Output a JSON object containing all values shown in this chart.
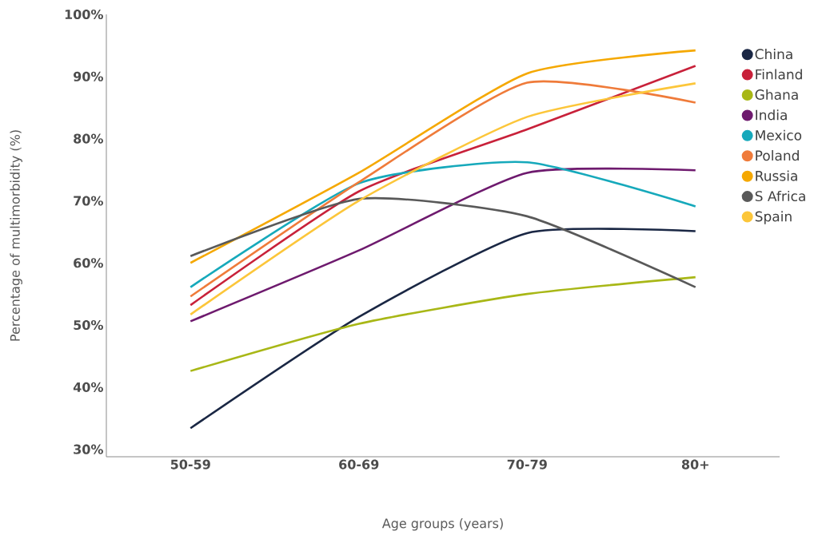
{
  "chart_data": {
    "type": "line",
    "xlabel": "Age groups (years)",
    "ylabel": "Percentage of multimorbidity (%)",
    "categories": [
      "50-59",
      "60-69",
      "70-79",
      "80+"
    ],
    "ylim": [
      28.8,
      100
    ],
    "yticks": [
      {
        "value": 30,
        "label": "30%"
      },
      {
        "value": 40,
        "label": "40%"
      },
      {
        "value": 50,
        "label": "50%"
      },
      {
        "value": 60,
        "label": "60%"
      },
      {
        "value": 70,
        "label": "70%"
      },
      {
        "value": 80,
        "label": "80%"
      },
      {
        "value": 90,
        "label": "90%"
      },
      {
        "value": 100,
        "label": "100%"
      }
    ],
    "legend": "right",
    "grid": false,
    "series": [
      {
        "name": "China",
        "color": "#1a2744",
        "values": [
          33.4,
          51.3,
          64.8,
          65.1
        ]
      },
      {
        "name": "Finland",
        "color": "#c8213a",
        "values": [
          53.2,
          71.5,
          81.5,
          91.7
        ]
      },
      {
        "name": "Ghana",
        "color": "#a8b716",
        "values": [
          42.6,
          50.2,
          55.0,
          57.7
        ]
      },
      {
        "name": "India",
        "color": "#6e1a6e",
        "values": [
          50.6,
          62.0,
          74.5,
          74.9
        ]
      },
      {
        "name": "Mexico",
        "color": "#16a9bb",
        "values": [
          56.1,
          72.8,
          76.2,
          69.1
        ]
      },
      {
        "name": "Poland",
        "color": "#ef7b3a",
        "values": [
          54.6,
          73.0,
          89.0,
          85.8
        ]
      },
      {
        "name": "Russia",
        "color": "#f5a800",
        "values": [
          60.0,
          74.5,
          90.5,
          94.2
        ]
      },
      {
        "name": "S Africa",
        "color": "#595959",
        "values": [
          61.1,
          70.3,
          67.5,
          56.1
        ]
      },
      {
        "name": "Spain",
        "color": "#fcc63a",
        "values": [
          51.7,
          70.0,
          83.5,
          88.9
        ]
      }
    ]
  }
}
